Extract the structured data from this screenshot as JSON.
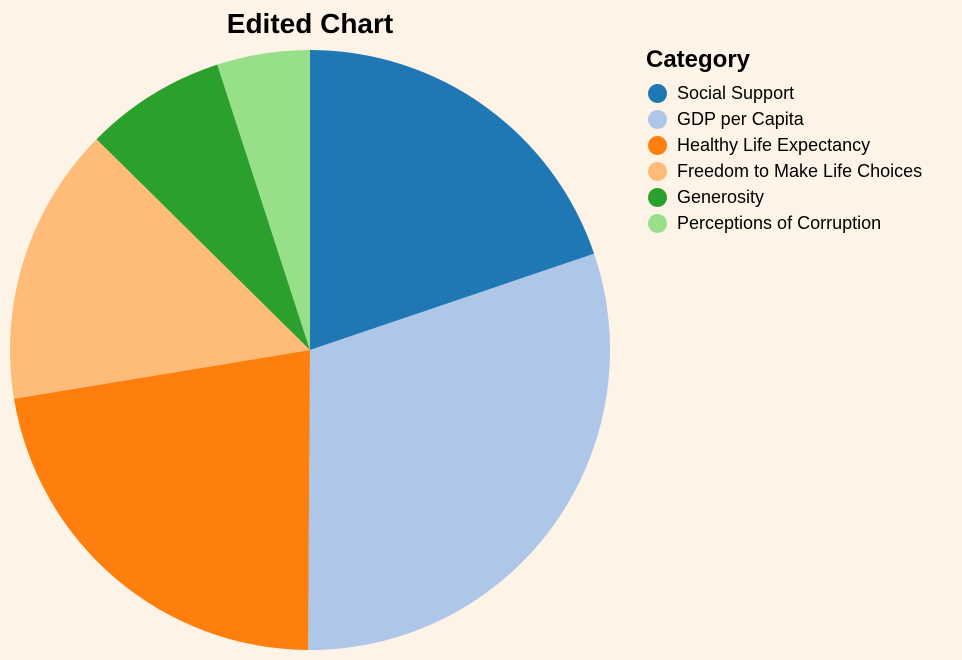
{
  "chart_data": {
    "type": "pie",
    "title": "Edited Chart",
    "legend_title": "Category",
    "legend_position": "right",
    "slices": [
      {
        "label": "Social Support",
        "value": 19.8,
        "color": "#1f77b4"
      },
      {
        "label": "GDP per Capita",
        "value": 30.3,
        "color": "#aec7e8"
      },
      {
        "label": "Healthy Life Expectancy",
        "value": 22.3,
        "color": "#ff7f0e"
      },
      {
        "label": "Freedom to Make Life Choices",
        "value": 15.0,
        "color": "#ffbb78"
      },
      {
        "label": "Generosity",
        "value": 7.6,
        "color": "#2ca02c"
      },
      {
        "label": "Perceptions of Corruption",
        "value": 5.0,
        "color": "#98df8a"
      }
    ]
  },
  "background_color": "#fdf3e6"
}
